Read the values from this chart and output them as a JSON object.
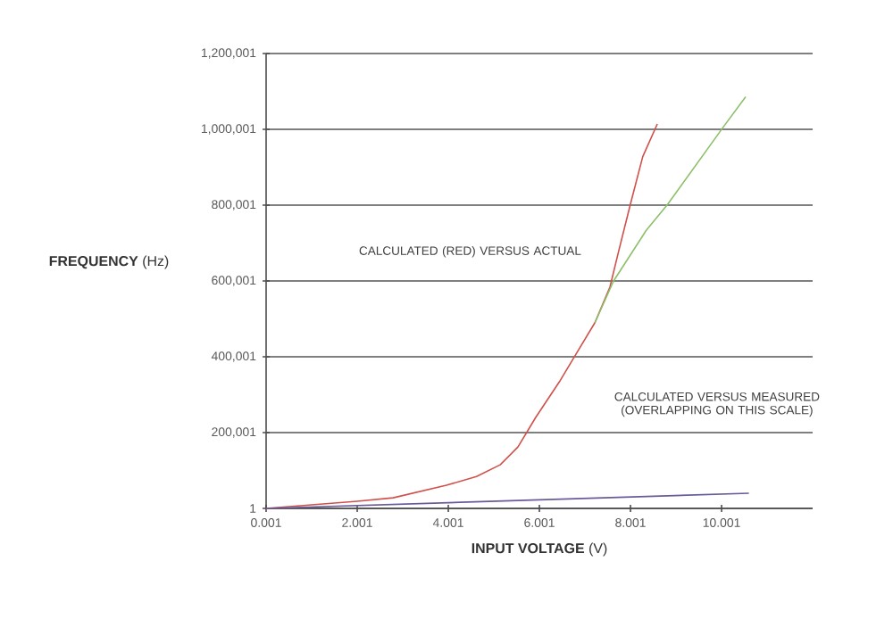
{
  "chart_data": {
    "type": "line",
    "xlabel": "**INPUT VOLTAGE** (V)",
    "ylabel": "**FREQUENCY** (Hz)",
    "annotations": [
      "CALCULATED (RED) VERSUS ACTUAL",
      "CALCULATED VERSUS MEASURED (OVERLAPPING ON THIS SCALE)"
    ],
    "xlim": [
      0.001,
      12
    ],
    "ylim": [
      1,
      1200001
    ],
    "xticks": [
      0.001,
      2.001,
      4.001,
      6.001,
      8.001,
      10.001
    ],
    "yticks": [
      1,
      {
        "value": 200001,
        "label": "200,001"
      },
      {
        "value": 400001,
        "label": "400,001"
      },
      {
        "value": 600001,
        "label": "600,001"
      },
      {
        "value": 800001,
        "label": "800,001"
      },
      {
        "value": 1000001,
        "label": "1,000,001"
      },
      {
        "value": 1200001,
        "label": "1,200,001"
      }
    ],
    "grid": "y",
    "marker": "none",
    "line_style": "solid",
    "series": [
      {
        "color": "#d0504a",
        "x": [
          0.001,
          2.0,
          2.79,
          3.96,
          4.62,
          5.14,
          5.53,
          5.92,
          6.44,
          6.83,
          7.22,
          7.55,
          7.74,
          8.0,
          8.27,
          8.59
        ],
        "values": [
          1,
          18700,
          28000,
          61000,
          84000,
          115000,
          162000,
          240000,
          334000,
          412000,
          490000,
          584000,
          678000,
          803000,
          928000,
          1014000
        ]
      },
      {
        "color": "#8cc06a",
        "x": [
          7.22,
          7.63,
          8.35,
          8.81,
          10.05,
          10.53
        ],
        "values": [
          490000,
          600000,
          734000,
          801000,
          1008000,
          1086000
        ]
      },
      {
        "color": "#6a5a9a",
        "x": [
          0.001,
          10.6
        ],
        "values": [
          1,
          40000
        ]
      }
    ]
  }
}
